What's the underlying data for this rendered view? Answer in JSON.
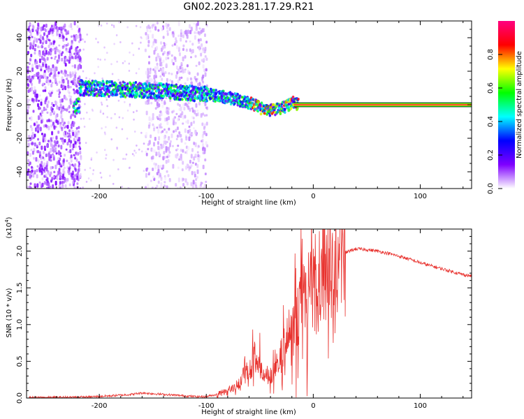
{
  "figure_title": "GN02.2023.281.17.29.R21",
  "chart_data": [
    {
      "type": "heatmap",
      "title": "GN02.2023.281.17.29.R21",
      "xlabel": "Height of straight line (km)",
      "ylabel": "Frequency (Hz)",
      "xlim": [
        -268,
        148
      ],
      "ylim": [
        -50,
        50
      ],
      "x_ticks": [
        -200,
        -100,
        0,
        100
      ],
      "y_ticks": [
        -40,
        -20,
        0,
        20,
        40
      ],
      "x_ticklabels": [
        "-200",
        "-100",
        "0",
        "100"
      ],
      "y_ticklabels": [
        "-40",
        "-20",
        "0",
        "20",
        "40"
      ],
      "grid": false,
      "colorbar": {
        "label": "Normalized spectral amplitude",
        "range": [
          0,
          1
        ],
        "ticks": [
          0.0,
          0.2,
          0.4,
          0.6,
          0.8
        ],
        "ticklabels": [
          "0.0",
          "0.2",
          "0.4",
          "0.6",
          "0.8"
        ],
        "colors": [
          "#ffffff",
          "#7f00ff",
          "#0000ff",
          "#00ffff",
          "#00ff00",
          "#ffff00",
          "#ff0000",
          "#ff0080"
        ]
      },
      "features": {
        "noise_band_left": [
          -268,
          -218
        ],
        "noise_band_mid": [
          -158,
          -100
        ],
        "signal_track": [
          [
            -220,
            11
          ],
          [
            -180,
            10
          ],
          [
            -140,
            9
          ],
          [
            -100,
            7
          ],
          [
            -80,
            5
          ],
          [
            -60,
            2
          ],
          [
            -45,
            -3
          ],
          [
            -30,
            -1
          ],
          [
            -20,
            2
          ],
          [
            -10,
            0
          ],
          [
            0,
            0
          ],
          [
            148,
            0
          ]
        ],
        "carrier_line": {
          "from": -18,
          "to": 148,
          "freq": 0
        }
      }
    },
    {
      "type": "line",
      "xlabel": "Height of straight line (km)",
      "ylabel": "SNR (10 * v/v)",
      "y_multiplier": "(x10^4)",
      "xlim": [
        -268,
        148
      ],
      "ylim": [
        0,
        2.3
      ],
      "x_ticks": [
        -200,
        -100,
        0,
        100
      ],
      "y_ticks": [
        0.0,
        0.5,
        1.0,
        1.5,
        2.0
      ],
      "x_ticklabels": [
        "-200",
        "-100",
        "0",
        "100"
      ],
      "y_ticklabels": [
        "0.0",
        "0.5",
        "1.0",
        "1.5",
        "2.0"
      ],
      "grid": false,
      "series": [
        {
          "color": "#e8322e",
          "x": [
            -268,
            -240,
            -210,
            -190,
            -170,
            -160,
            -150,
            -130,
            -110,
            -100,
            -90,
            -80,
            -70,
            -60,
            -55,
            -50,
            -40,
            -30,
            -20,
            -10,
            0,
            10,
            20,
            30,
            40,
            50,
            60,
            70,
            80,
            90,
            100,
            110,
            120,
            130,
            140,
            148
          ],
          "y": [
            0.005,
            0.01,
            0.015,
            0.03,
            0.05,
            0.07,
            0.06,
            0.04,
            0.02,
            0.02,
            0.05,
            0.1,
            0.2,
            0.4,
            0.55,
            0.35,
            0.3,
            0.6,
            0.95,
            1.25,
            1.5,
            1.7,
            1.88,
            1.98,
            2.03,
            2.02,
            2.0,
            1.97,
            1.93,
            1.89,
            1.84,
            1.8,
            1.76,
            1.72,
            1.68,
            1.66
          ],
          "spikes": [
            [
              -60,
              0.9
            ],
            [
              -50,
              0.85
            ],
            [
              -35,
              0.75
            ],
            [
              -25,
              1.2
            ],
            [
              -20,
              1.5
            ],
            [
              -10,
              2.2
            ],
            [
              0,
              1.6
            ],
            [
              10,
              1.6
            ]
          ]
        }
      ]
    }
  ]
}
